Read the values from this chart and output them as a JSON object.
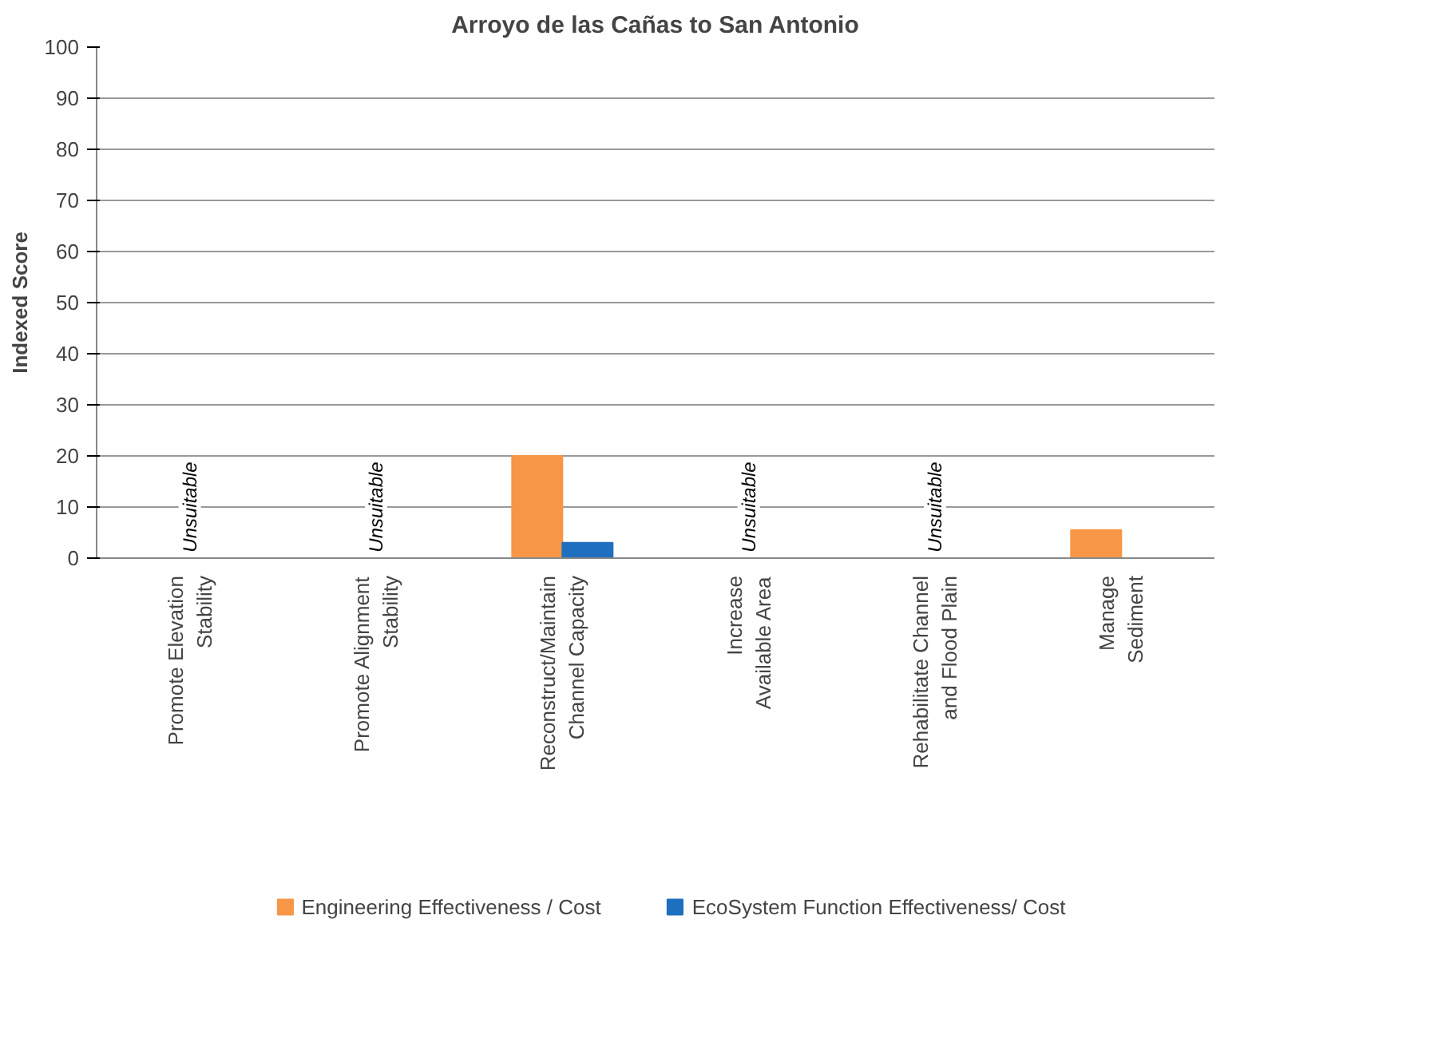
{
  "chart_data": {
    "type": "bar",
    "title": "Arroyo de las Cañas to San Antonio",
    "ylabel": "Indexed Score",
    "categories": [
      "Promote Elevation Stability",
      "Promote Alignment Stability",
      "Reconstruct/Maintain Channel Capacity",
      "Increase Available Area",
      "Rehabilitate Channel and Flood Plain",
      "Manage Sediment"
    ],
    "series": [
      {
        "name": "Engineering Effectiveness / Cost",
        "color": "#f79646",
        "values": [
          null,
          null,
          20,
          null,
          null,
          5.5
        ]
      },
      {
        "name": "EcoSystem Function Effectiveness/ Cost",
        "color": "#1f6fbf",
        "values": [
          null,
          null,
          3,
          null,
          null,
          null
        ]
      }
    ],
    "annotations": [
      "Unsuitable",
      "Unsuitable",
      "Unsuitable",
      "Unsuitable"
    ],
    "ylim": [
      0,
      100
    ],
    "yticks": [
      0,
      10,
      20,
      30,
      40,
      50,
      60,
      70,
      80,
      90,
      100
    ],
    "grid": "y",
    "legend": "bottom"
  }
}
